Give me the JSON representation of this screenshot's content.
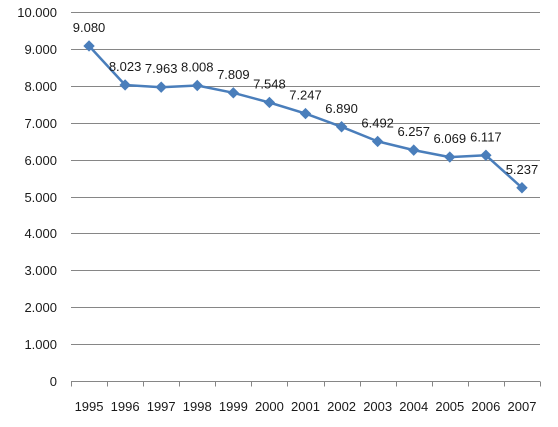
{
  "chart_data": {
    "type": "line",
    "x": [
      "1995",
      "1996",
      "1997",
      "1998",
      "1999",
      "2000",
      "2001",
      "2002",
      "2003",
      "2004",
      "2005",
      "2006",
      "2007"
    ],
    "series": [
      {
        "values": [
          9.08,
          8.023,
          7.963,
          8.008,
          7.809,
          7.548,
          7.247,
          6.89,
          6.492,
          6.257,
          6.069,
          6.117,
          5.237
        ]
      }
    ],
    "data_labels": [
      "9.080",
      "8.023",
      "7.963",
      "8.008",
      "7.809",
      "7.548",
      "7.247",
      "6.890",
      "6.492",
      "6.257",
      "6.069",
      "6.117",
      "5.237"
    ],
    "y_ticks": [
      0,
      1,
      2,
      3,
      4,
      5,
      6,
      7,
      8,
      9,
      10
    ],
    "y_tick_labels": [
      "0",
      "1.000",
      "2.000",
      "3.000",
      "4.000",
      "5.000",
      "6.000",
      "7.000",
      "8.000",
      "9.000",
      "10.000"
    ],
    "ylim": [
      0,
      10
    ],
    "grid": true,
    "legend": "none",
    "colors": {
      "line": "#4A7EBB",
      "marker": "#4A7EBB",
      "grid": "#868686",
      "axis": "#868686"
    }
  }
}
